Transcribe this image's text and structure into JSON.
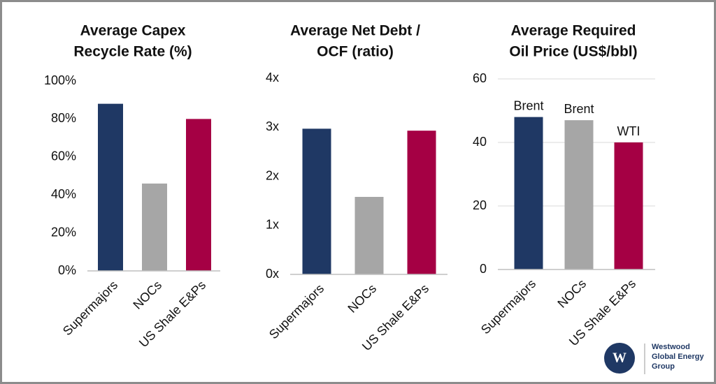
{
  "chart_data": [
    {
      "type": "bar",
      "title": [
        "Average Capex",
        "Recycle Rate (%)"
      ],
      "categories": [
        "Supermajors",
        "NOCs",
        "US Shale E&Ps"
      ],
      "values": [
        88,
        46,
        80
      ],
      "colors": [
        "#1f3864",
        "#a6a6a6",
        "#a50044"
      ],
      "ylim": [
        0,
        100
      ],
      "yticks": [
        {
          "value": 0,
          "label": "0%"
        },
        {
          "value": 20,
          "label": "20%"
        },
        {
          "value": 40,
          "label": "40%"
        },
        {
          "value": 60,
          "label": "60%"
        },
        {
          "value": 80,
          "label": "80%"
        },
        {
          "value": 100,
          "label": "100%"
        }
      ],
      "grid": false
    },
    {
      "type": "bar",
      "title": [
        "Average Net Debt /",
        "OCF (ratio)"
      ],
      "categories": [
        "Supermajors",
        "NOCs",
        "US Shale E&Ps"
      ],
      "values": [
        2.97,
        1.58,
        2.93
      ],
      "colors": [
        "#1f3864",
        "#a6a6a6",
        "#a50044"
      ],
      "ylim": [
        0,
        4
      ],
      "yticks": [
        {
          "value": 0,
          "label": "0x"
        },
        {
          "value": 1,
          "label": "1x"
        },
        {
          "value": 2,
          "label": "2x"
        },
        {
          "value": 3,
          "label": "3x"
        },
        {
          "value": 4,
          "label": "4x"
        }
      ],
      "grid": false
    },
    {
      "type": "bar",
      "title": [
        "Average Required",
        "Oil Price (US$/bbl)"
      ],
      "categories": [
        "Supermajors",
        "NOCs",
        "US Shale E&Ps"
      ],
      "values": [
        48,
        47,
        40
      ],
      "bar_labels": [
        "Brent",
        "Brent",
        "WTI"
      ],
      "colors": [
        "#1f3864",
        "#a6a6a6",
        "#a50044"
      ],
      "ylim": [
        0,
        60
      ],
      "yticks": [
        0,
        20,
        40,
        60
      ],
      "grid": true
    }
  ],
  "logo": {
    "mark": "W",
    "lines": [
      "Westwood",
      "Global Energy",
      "Group"
    ]
  }
}
